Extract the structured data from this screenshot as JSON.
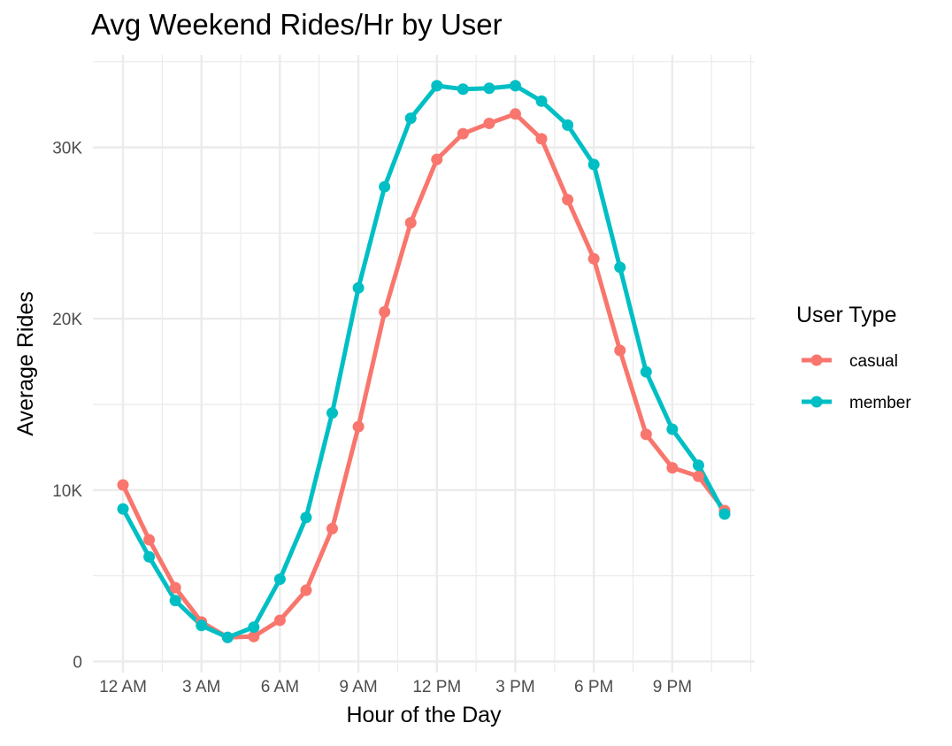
{
  "chart_data": {
    "type": "line",
    "title": "Avg Weekend Rides/Hr by User",
    "xlabel": "Hour of the Day",
    "ylabel": "Average Rides",
    "x": [
      0,
      1,
      2,
      3,
      4,
      5,
      6,
      7,
      8,
      9,
      10,
      11,
      12,
      13,
      14,
      15,
      16,
      17,
      18,
      19,
      20,
      21,
      22,
      23
    ],
    "x_ticks": [
      {
        "x": 0,
        "label": "12 AM"
      },
      {
        "x": 3,
        "label": "3 AM"
      },
      {
        "x": 6,
        "label": "6 AM"
      },
      {
        "x": 9,
        "label": "9 AM"
      },
      {
        "x": 12,
        "label": "12 PM"
      },
      {
        "x": 15,
        "label": "3 PM"
      },
      {
        "x": 18,
        "label": "6 PM"
      },
      {
        "x": 21,
        "label": "9 PM"
      }
    ],
    "y_ticks": [
      {
        "y": 0,
        "label": "0"
      },
      {
        "y": 10000,
        "label": "10K"
      },
      {
        "y": 20000,
        "label": "20K"
      },
      {
        "y": 30000,
        "label": "30K"
      }
    ],
    "xlim": [
      -1.15,
      24.15
    ],
    "ylim": [
      -650,
      35400
    ],
    "grid": true,
    "legend_position": "right",
    "legend_title": "User Type",
    "series": [
      {
        "name": "casual",
        "color": "#F8766D",
        "values": [
          10300,
          7100,
          4300,
          2300,
          1400,
          1450,
          2400,
          4150,
          7750,
          13700,
          20400,
          25600,
          29300,
          30800,
          31400,
          31950,
          30500,
          26950,
          23500,
          18150,
          13250,
          11300,
          10800,
          8800
        ]
      },
      {
        "name": "member",
        "color": "#00BFC4",
        "values": [
          8900,
          6100,
          3550,
          2100,
          1400,
          2000,
          4800,
          8400,
          14500,
          21800,
          27700,
          31700,
          33600,
          33400,
          33450,
          33600,
          32700,
          31300,
          29000,
          23000,
          16900,
          13550,
          11450,
          8600
        ]
      }
    ]
  }
}
